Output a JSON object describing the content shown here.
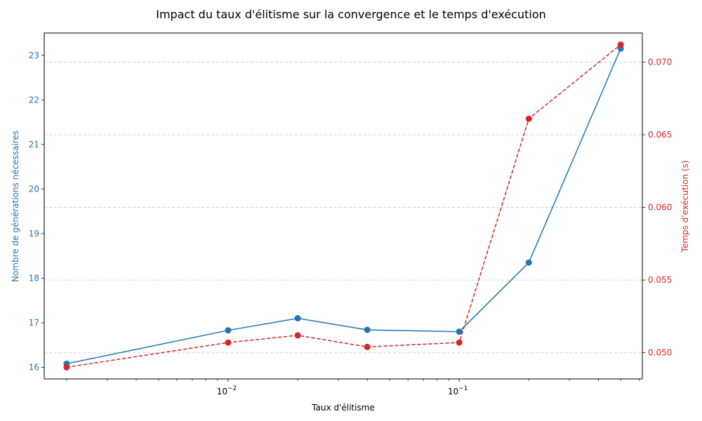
{
  "chart_data": {
    "type": "line",
    "title": "Impact du taux d'élitisme sur la convergence et le temps d'exécution",
    "xlabel": "Taux d'élitisme",
    "ylabel_left": "Nombre de générations nécessaires",
    "ylabel_right": "Temps d'exécution (s)",
    "x_scale": "log",
    "xlim": [
      0.0016,
      0.62
    ],
    "x": [
      0.002,
      0.01,
      0.02,
      0.04,
      0.1,
      0.2,
      0.5
    ],
    "x_ticks": [
      {
        "value": 0.01,
        "base": "10",
        "exp": "−2"
      },
      {
        "value": 0.1,
        "base": "10",
        "exp": "−1"
      }
    ],
    "ylim_left": [
      15.74,
      23.5
    ],
    "y_ticks_left": [
      "16",
      "17",
      "18",
      "19",
      "20",
      "21",
      "22",
      "23"
    ],
    "ylim_right": [
      0.0482,
      0.072
    ],
    "y_ticks_right": [
      "0.050",
      "0.055",
      "0.060",
      "0.065",
      "0.070"
    ],
    "grid": "horizontal dashed (right axis)",
    "series": [
      {
        "axis": "left",
        "color": "#1f77b4",
        "line_style": "solid",
        "marker": "circle",
        "values": [
          16.08,
          16.83,
          17.1,
          16.84,
          16.8,
          18.35,
          23.15
        ]
      },
      {
        "axis": "right",
        "color": "#d62728",
        "line_style": "dashed",
        "marker": "circle",
        "values": [
          0.049,
          0.0507,
          0.0512,
          0.0504,
          0.0507,
          0.0661,
          0.0712
        ]
      }
    ]
  }
}
